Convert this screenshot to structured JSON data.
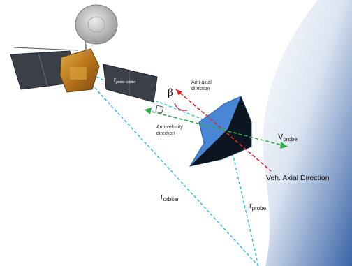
{
  "labels": {
    "r_probe_orbiter": "r",
    "r_probe_orbiter_sub": "probe-orbiter",
    "beta": "β",
    "anti_axial": "Anti-axial",
    "anti_axial_2": "direction",
    "anti_velocity": "Anti-velocity",
    "anti_velocity_2": "direction",
    "v_probe": "V",
    "v_probe_sub": "probe",
    "veh_axial": "Veh. Axial Direction",
    "r_orbiter": "r",
    "r_orbiter_sub": "orbiter",
    "r_probe": "r",
    "r_probe_sub": "probe"
  },
  "colors": {
    "background": "#ffffff",
    "planet_light": "#f3f6fb",
    "planet_dark": "#3a64a8",
    "probe_face": "#4a86d6",
    "probe_dark": "#0c1520",
    "range_lines": "#1ab7ea",
    "axial_line": "#e0262a",
    "velocity_line": "#2aa84a",
    "solar_panel": "#3b3f48",
    "body_gold": "#c8891a",
    "dish": "#c9c9c9"
  }
}
